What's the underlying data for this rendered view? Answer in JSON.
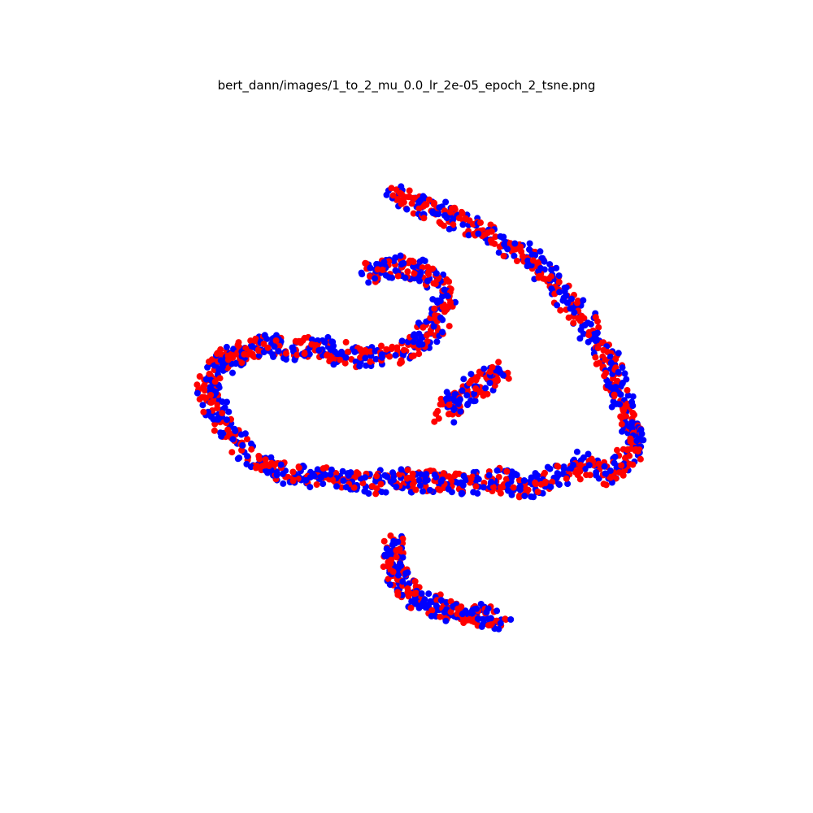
{
  "chart_data": {
    "type": "scatter",
    "title": "bert_dann/images/1_to_2_mu_0.0_lr_2e-05_epoch_2_tsne.png",
    "xlabel": "",
    "ylabel": "",
    "axes_visible": false,
    "grid": false,
    "legend": "none",
    "xlim": [
      0,
      100
    ],
    "ylim": [
      0,
      100
    ],
    "colors": {
      "red_series": "#ff0000",
      "blue_series": "#0000ff"
    },
    "marker": "circle",
    "clusters": [
      {
        "shape": "large ring with upper-right arc",
        "points": [
          [
            46.2,
            84.5
          ],
          [
            49.0,
            83.2
          ],
          [
            52.0,
            82.0
          ],
          [
            55.0,
            81.0
          ],
          [
            58.0,
            79.5
          ],
          [
            61.0,
            78.0
          ],
          [
            64.0,
            76.0
          ],
          [
            67.0,
            74.5
          ],
          [
            69.5,
            72.5
          ],
          [
            72.0,
            70.0
          ],
          [
            74.0,
            67.5
          ],
          [
            76.0,
            65.0
          ],
          [
            77.5,
            62.0
          ],
          [
            79.5,
            59.0
          ],
          [
            81.0,
            56.0
          ],
          [
            82.0,
            53.0
          ],
          [
            83.0,
            50.0
          ],
          [
            84.0,
            47.0
          ],
          [
            85.0,
            44.5
          ],
          [
            84.0,
            42.0
          ],
          [
            82.0,
            40.0
          ],
          [
            80.0,
            39.0
          ],
          [
            77.0,
            41.0
          ],
          [
            74.0,
            39.5
          ],
          [
            71.0,
            38.5
          ],
          [
            68.0,
            36.5
          ],
          [
            65.0,
            37.5
          ],
          [
            62.0,
            38.5
          ],
          [
            59.0,
            37.5
          ],
          [
            56.0,
            37.5
          ],
          [
            53.0,
            38.0
          ],
          [
            50.0,
            37.5
          ],
          [
            47.0,
            38.5
          ],
          [
            44.0,
            37.5
          ],
          [
            41.0,
            37.5
          ],
          [
            38.0,
            38.5
          ],
          [
            35.0,
            39.0
          ],
          [
            32.0,
            38.5
          ],
          [
            29.0,
            39.5
          ],
          [
            26.0,
            40.5
          ],
          [
            23.0,
            42.5
          ],
          [
            21.0,
            45.0
          ],
          [
            19.0,
            48.0
          ],
          [
            17.5,
            50.5
          ],
          [
            16.5,
            53.0
          ],
          [
            18.0,
            56.0
          ],
          [
            20.0,
            57.5
          ],
          [
            22.0,
            58.5
          ],
          [
            24.0,
            59.5
          ],
          [
            26.5,
            60.0
          ],
          [
            29.0,
            59.0
          ],
          [
            32.0,
            59.5
          ],
          [
            35.0,
            59.5
          ],
          [
            38.0,
            58.5
          ],
          [
            41.0,
            58.0
          ],
          [
            44.0,
            58.0
          ],
          [
            47.0,
            58.5
          ],
          [
            50.0,
            60.0
          ],
          [
            52.0,
            62.0
          ],
          [
            53.5,
            64.5
          ],
          [
            54.5,
            67.0
          ],
          [
            53.5,
            69.5
          ],
          [
            51.5,
            71.5
          ],
          [
            49.0,
            72.5
          ],
          [
            46.0,
            73.0
          ],
          [
            43.5,
            72.0
          ],
          [
            42.0,
            71.0
          ]
        ]
      },
      {
        "shape": "small diagonal segment",
        "points": [
          [
            54.5,
            49.0
          ],
          [
            56.0,
            50.5
          ],
          [
            58.0,
            52.0
          ],
          [
            60.0,
            53.5
          ],
          [
            62.0,
            55.0
          ],
          [
            63.5,
            56.0
          ]
        ]
      },
      {
        "shape": "lower arc",
        "points": [
          [
            46.5,
            28.0
          ],
          [
            46.0,
            26.0
          ],
          [
            46.5,
            24.0
          ],
          [
            47.5,
            22.0
          ],
          [
            49.0,
            20.0
          ],
          [
            51.0,
            18.5
          ],
          [
            53.5,
            17.5
          ],
          [
            56.0,
            17.0
          ],
          [
            58.5,
            16.5
          ],
          [
            61.0,
            16.0
          ],
          [
            63.5,
            15.0
          ]
        ]
      }
    ]
  }
}
